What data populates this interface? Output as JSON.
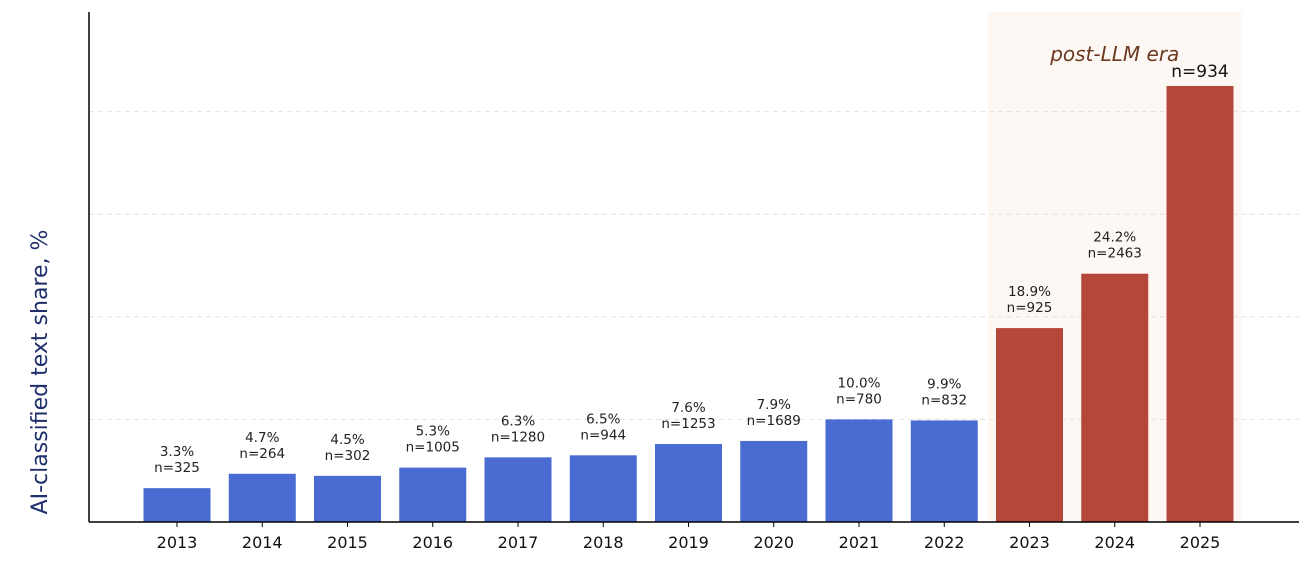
{
  "chart_data": {
    "type": "bar",
    "title": "",
    "xlabel": "",
    "ylabel": "AI-classified text share, %",
    "ylim": [
      0,
      50
    ],
    "grid": "horizontal dashed",
    "categories": [
      "2013",
      "2014",
      "2015",
      "2016",
      "2017",
      "2018",
      "2019",
      "2020",
      "2021",
      "2022",
      "2023",
      "2024",
      "2025"
    ],
    "values": [
      3.3,
      4.7,
      4.5,
      5.3,
      6.3,
      6.5,
      7.6,
      7.9,
      10.0,
      9.9,
      18.9,
      24.2,
      42.5
    ],
    "value_labels": [
      "3.3%",
      "4.7%",
      "4.5%",
      "5.3%",
      "6.3%",
      "6.5%",
      "7.6%",
      "7.9%",
      "10.0%",
      "9.9%",
      "18.9%",
      "24.2%",
      ""
    ],
    "n_labels": [
      "n=325",
      "n=264",
      "n=302",
      "n=1005",
      "n=1280",
      "n=944",
      "n=1253",
      "n=1689",
      "n=780",
      "n=832",
      "n=925",
      "n=2463",
      "n=934"
    ],
    "colors": {
      "pre": "#4a6bd1",
      "post": "#b5473a",
      "shade": "#fdf8f3",
      "annotation": "#6b3a22",
      "ylabel": "#1f2f6b"
    },
    "post_start_index": 10,
    "annotation": "post-LLM era"
  }
}
